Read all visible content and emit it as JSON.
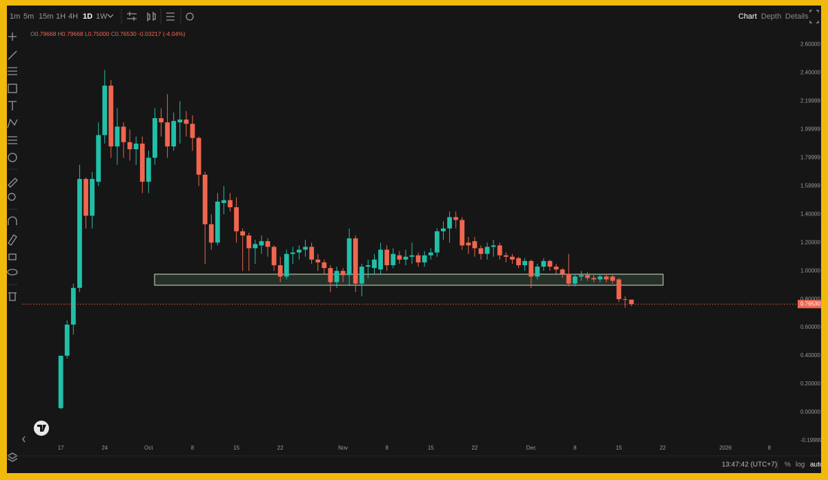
{
  "toolbar": {
    "intervals": [
      "1m",
      "5m",
      "15m",
      "1H",
      "4H",
      "1D",
      "1W"
    ],
    "active_interval": 5,
    "tabs": [
      "Chart",
      "Depth",
      "Details"
    ],
    "active_tab": 0
  },
  "ohlc_legend": {
    "items": [
      {
        "key": "O",
        "value": "0.79668"
      },
      {
        "key": "H",
        "value": "0.79668"
      },
      {
        "key": "L",
        "value": "0.75000"
      },
      {
        "key": "C",
        "value": "0.76530"
      }
    ],
    "change": "-0.03217 (-4.04%)"
  },
  "footer": {
    "time": "13:47:42 (UTC+7)",
    "buttons": [
      "%",
      "log",
      "auto"
    ]
  },
  "chart_data": {
    "type": "candlestick",
    "up_color": "#22bfa8",
    "down_color": "#f0664f",
    "x": [
      0,
      1,
      2,
      3,
      4,
      5,
      6,
      7,
      8,
      9,
      10,
      11,
      12,
      13,
      14,
      15,
      16,
      17,
      18,
      19,
      20,
      21,
      22,
      23,
      24,
      25,
      26,
      27,
      28,
      29,
      30,
      31,
      32,
      33,
      34,
      35,
      36,
      37,
      38,
      39,
      40,
      41,
      42,
      43,
      44,
      45,
      46,
      47,
      48,
      49,
      50,
      51,
      52,
      53,
      54,
      55,
      56,
      57,
      58,
      59,
      60,
      61,
      62,
      63,
      64,
      65,
      66,
      67,
      68,
      69,
      70,
      71,
      72,
      73,
      74,
      75,
      76,
      77,
      78,
      79,
      80,
      81,
      82,
      83,
      84,
      85,
      86,
      87,
      88,
      89,
      90,
      91
    ],
    "open": [
      0.03,
      0.4,
      0.62,
      0.88,
      1.65,
      1.39,
      1.63,
      1.96,
      2.31,
      1.88,
      2.02,
      1.91,
      1.86,
      1.9,
      1.63,
      1.8,
      2.08,
      2.05,
      1.88,
      2.05,
      2.07,
      2.04,
      1.94,
      1.68,
      1.33,
      1.2,
      1.48,
      1.5,
      1.45,
      1.28,
      1.25,
      1.16,
      1.18,
      1.21,
      1.17,
      1.04,
      0.96,
      1.12,
      1.13,
      1.15,
      1.17,
      1.08,
      1.06,
      1.02,
      0.92,
      1.0,
      0.97,
      1.23,
      0.91,
      1.03,
      1.02,
      1.01,
      1.15,
      1.04,
      1.11,
      1.08,
      1.1,
      1.11,
      1.06,
      1.11,
      1.13,
      1.28,
      1.3,
      1.38,
      1.36,
      1.2,
      1.21,
      1.16,
      1.12,
      1.17,
      1.18,
      1.11,
      1.1,
      1.09,
      1.04,
      1.07,
      0.96,
      1.03,
      1.07,
      1.03,
      1.01,
      0.98,
      0.91,
      0.96,
      0.97,
      0.95,
      0.94,
      0.96,
      0.96,
      0.94,
      0.8,
      0.79668
    ],
    "high": [
      0.4,
      0.65,
      0.91,
      1.75,
      1.66,
      1.7,
      2.05,
      2.42,
      2.35,
      2.15,
      2.05,
      2.0,
      1.95,
      1.95,
      1.85,
      2.15,
      2.15,
      2.25,
      2.12,
      2.2,
      2.13,
      2.1,
      1.95,
      1.7,
      1.4,
      1.55,
      1.6,
      1.55,
      1.52,
      1.3,
      1.27,
      1.22,
      1.25,
      1.23,
      1.18,
      1.1,
      1.15,
      1.17,
      1.18,
      1.22,
      1.2,
      1.12,
      1.08,
      1.04,
      1.03,
      1.02,
      1.3,
      1.25,
      1.05,
      1.08,
      1.12,
      1.2,
      1.18,
      1.16,
      1.14,
      1.15,
      1.2,
      1.13,
      1.14,
      1.16,
      1.3,
      1.35,
      1.42,
      1.42,
      1.38,
      1.24,
      1.24,
      1.18,
      1.2,
      1.22,
      1.2,
      1.13,
      1.12,
      1.1,
      1.09,
      1.08,
      1.05,
      1.09,
      1.08,
      1.05,
      1.02,
      1.12,
      0.98,
      1.0,
      0.99,
      0.97,
      0.98,
      0.98,
      0.97,
      0.95,
      0.82,
      0.79668
    ],
    "low": [
      0.02,
      0.38,
      0.55,
      0.85,
      1.3,
      1.3,
      1.6,
      1.9,
      1.8,
      1.75,
      1.8,
      1.78,
      1.75,
      1.55,
      1.55,
      1.75,
      1.95,
      1.8,
      1.85,
      1.9,
      1.95,
      1.85,
      1.6,
      1.05,
      1.15,
      1.18,
      1.4,
      1.42,
      1.2,
      1.0,
      1.0,
      1.05,
      1.12,
      1.1,
      1.0,
      0.92,
      0.94,
      1.05,
      1.08,
      1.1,
      1.05,
      1.0,
      0.98,
      0.85,
      0.88,
      0.92,
      0.9,
      0.85,
      0.82,
      0.95,
      0.98,
      0.98,
      1.0,
      1.02,
      1.05,
      1.04,
      1.05,
      1.03,
      1.03,
      1.08,
      1.1,
      1.22,
      1.2,
      1.3,
      1.15,
      1.12,
      1.1,
      1.08,
      1.08,
      1.1,
      1.08,
      1.06,
      1.05,
      1.02,
      1.0,
      0.88,
      0.94,
      1.0,
      1.0,
      0.98,
      0.95,
      0.89,
      0.89,
      0.93,
      0.93,
      0.92,
      0.92,
      0.92,
      0.91,
      0.78,
      0.74,
      0.75
    ],
    "close": [
      0.4,
      0.62,
      0.88,
      1.65,
      1.39,
      1.65,
      1.96,
      2.31,
      1.88,
      2.02,
      1.91,
      1.86,
      1.9,
      1.63,
      1.8,
      2.08,
      2.05,
      1.88,
      2.06,
      2.07,
      2.04,
      1.94,
      1.68,
      1.33,
      1.2,
      1.49,
      1.5,
      1.45,
      1.28,
      1.25,
      1.16,
      1.19,
      1.21,
      1.17,
      1.04,
      0.96,
      1.12,
      1.13,
      1.15,
      1.17,
      1.08,
      1.06,
      1.02,
      0.92,
      1.0,
      0.97,
      1.23,
      0.91,
      1.03,
      1.04,
      1.08,
      1.15,
      1.04,
      1.12,
      1.08,
      1.1,
      1.11,
      1.06,
      1.11,
      1.13,
      1.28,
      1.3,
      1.38,
      1.36,
      1.18,
      1.18,
      1.16,
      1.12,
      1.17,
      1.18,
      1.11,
      1.1,
      1.08,
      1.04,
      1.07,
      0.96,
      1.03,
      1.07,
      1.03,
      1.01,
      0.98,
      0.91,
      0.96,
      0.97,
      0.95,
      0.94,
      0.96,
      0.94,
      0.93,
      0.8,
      0.797,
      0.7653
    ],
    "last_price_label": "0.76530",
    "ylim": [
      -0.21,
      2.72
    ],
    "yticks": [
      {
        "value": 2.6,
        "label": "2.60000"
      },
      {
        "value": 2.4,
        "label": "2.40000"
      },
      2.19999,
      1.99999,
      1.79999,
      1.59999,
      {
        "value": 1.4,
        "label": "1.40000"
      },
      {
        "value": 1.2,
        "label": "1.20000"
      },
      {
        "value": 1,
        "label": "1.00000"
      },
      {
        "value": 0.8,
        "label": "0.80000"
      },
      {
        "value": 0.6,
        "label": "0.60000"
      },
      {
        "value": 0.4,
        "label": "0.40000"
      },
      {
        "value": 0.2,
        "label": "0.20000"
      },
      {
        "value": 0,
        "label": "0.00000"
      },
      -0.19999
    ],
    "xlim": [
      -6.4,
      117.4
    ],
    "xticks": [
      {
        "value": 0,
        "label": "17"
      },
      {
        "value": 7,
        "label": "24"
      },
      {
        "value": 14,
        "label": "Oct"
      },
      {
        "value": 21,
        "label": "8"
      },
      {
        "value": 28,
        "label": "15"
      },
      {
        "value": 35,
        "label": "22"
      },
      {
        "value": 45,
        "label": "Nov"
      },
      {
        "value": 52,
        "label": "8"
      },
      {
        "value": 59,
        "label": "15"
      },
      {
        "value": 66,
        "label": "22"
      },
      {
        "value": 75,
        "label": "Dec"
      },
      {
        "value": 82,
        "label": "8"
      },
      {
        "value": 89,
        "label": "15"
      },
      {
        "value": 96,
        "label": "22"
      },
      {
        "value": 106,
        "label": "2026"
      },
      {
        "value": 113,
        "label": "8"
      }
    ]
  }
}
